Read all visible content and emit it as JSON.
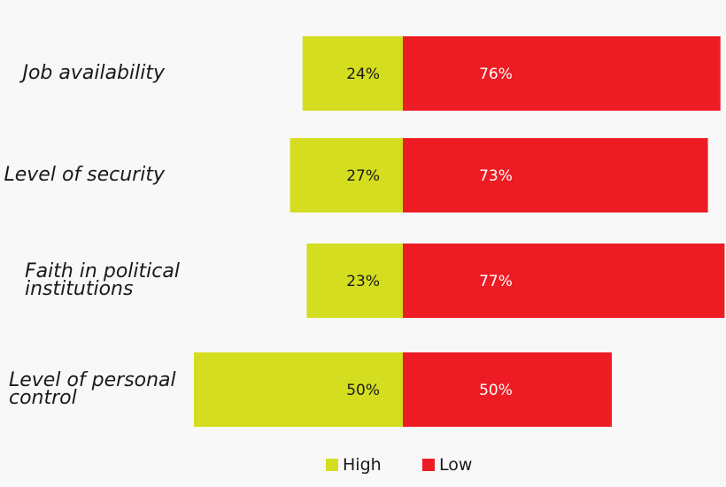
{
  "chart_data": {
    "type": "bar",
    "orientation": "horizontal",
    "stacked": true,
    "categories": [
      "Job availability",
      "Level of security",
      "Faith in political institutions",
      "Level of personal control"
    ],
    "category_lines": [
      [
        "Job availability"
      ],
      [
        "Level of security"
      ],
      [
        "Faith in political",
        "institutions"
      ],
      [
        "Level of personal",
        "control"
      ]
    ],
    "series": [
      {
        "name": "High",
        "color": "#d4dd1f",
        "values": [
          24,
          27,
          23,
          50
        ],
        "labels": [
          "24%",
          "27%",
          "23%",
          "50%"
        ]
      },
      {
        "name": "Low",
        "color": "#ed1c24",
        "values": [
          76,
          73,
          77,
          50
        ],
        "labels": [
          "76%",
          "73%",
          "77%",
          "50%"
        ]
      }
    ],
    "unit": "%",
    "xlim": [
      0,
      100
    ],
    "grid": false,
    "legend_position": "bottom"
  },
  "legend": {
    "high_label": "High",
    "low_label": "Low"
  }
}
